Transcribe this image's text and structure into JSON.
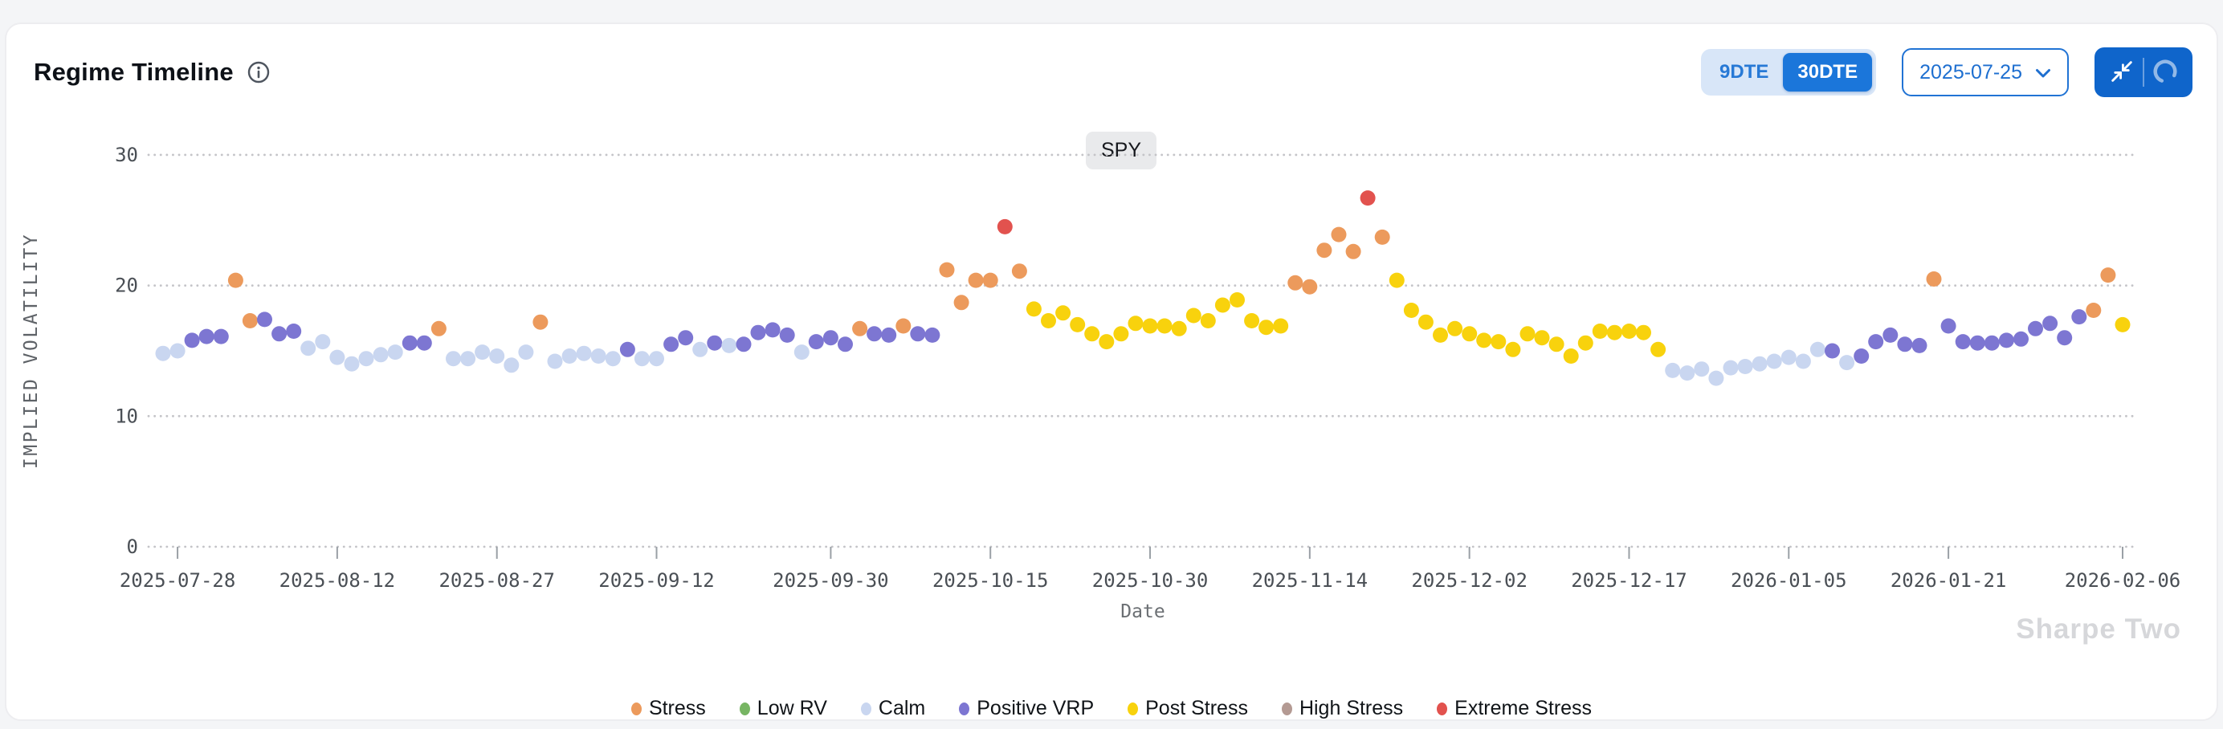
{
  "header": {
    "title": "Regime Timeline",
    "dte_toggle": {
      "options": [
        "9DTE",
        "30DTE"
      ],
      "selected": "30DTE"
    },
    "date_select": {
      "value": "2025-07-25"
    },
    "actions": [
      "collapse",
      "refresh"
    ]
  },
  "symbol_badge": "SPY",
  "watermark": "Sharpe Two",
  "colors": {
    "accent_blue": "#1b76da",
    "toggle_bg": "#d8e6f8",
    "action_bg": "#0f65cb",
    "select_border": "#2173d4",
    "gridline": "#c4c4c8",
    "axis_text": "#4a4f55",
    "badge_bg": "#e9eaec"
  },
  "chart_data": {
    "type": "scatter",
    "title": "SPY",
    "xlabel": "Date",
    "ylabel": "IMPLIED VOLATILITY",
    "ylim": [
      0,
      30
    ],
    "yticks": [
      0,
      10,
      20,
      30
    ],
    "xticks": [
      "2025-07-28",
      "2025-08-12",
      "2025-08-27",
      "2025-09-12",
      "2025-09-30",
      "2025-10-15",
      "2025-10-30",
      "2025-11-14",
      "2025-12-02",
      "2025-12-17",
      "2026-01-05",
      "2026-01-21",
      "2026-02-06"
    ],
    "grid": "horizontal-dotted",
    "legend_position": "bottom-center",
    "regimes": [
      {
        "code": "S",
        "label": "Stress",
        "color": "#EC9A5C"
      },
      {
        "code": "L",
        "label": "Low RV",
        "color": "#77B563"
      },
      {
        "code": "C",
        "label": "Calm",
        "color": "#C9D6F0"
      },
      {
        "code": "P",
        "label": "Positive VRP",
        "color": "#7D76D2"
      },
      {
        "code": "PS",
        "label": "Post Stress",
        "color": "#F8D20D"
      },
      {
        "code": "HS",
        "label": "High Stress",
        "color": "#B49A93"
      },
      {
        "code": "ES",
        "label": "Extreme Stress",
        "color": "#E2524E"
      }
    ],
    "point_format": [
      "date",
      "implied_volatility",
      "regime_code"
    ],
    "points": [
      [
        "2025-07-25",
        14.8,
        "C"
      ],
      [
        "2025-07-28",
        15.0,
        "C"
      ],
      [
        "2025-07-29",
        15.8,
        "P"
      ],
      [
        "2025-07-30",
        16.1,
        "P"
      ],
      [
        "2025-07-31",
        16.1,
        "P"
      ],
      [
        "2025-08-01",
        20.4,
        "S"
      ],
      [
        "2025-08-04",
        17.3,
        "S"
      ],
      [
        "2025-08-05",
        17.4,
        "P"
      ],
      [
        "2025-08-06",
        16.3,
        "P"
      ],
      [
        "2025-08-07",
        16.5,
        "P"
      ],
      [
        "2025-08-08",
        15.2,
        "C"
      ],
      [
        "2025-08-11",
        15.7,
        "C"
      ],
      [
        "2025-08-12",
        14.5,
        "C"
      ],
      [
        "2025-08-13",
        14.0,
        "C"
      ],
      [
        "2025-08-14",
        14.4,
        "C"
      ],
      [
        "2025-08-15",
        14.7,
        "C"
      ],
      [
        "2025-08-18",
        14.9,
        "C"
      ],
      [
        "2025-08-19",
        15.6,
        "P"
      ],
      [
        "2025-08-20",
        15.6,
        "P"
      ],
      [
        "2025-08-21",
        16.7,
        "S"
      ],
      [
        "2025-08-22",
        14.4,
        "C"
      ],
      [
        "2025-08-25",
        14.4,
        "C"
      ],
      [
        "2025-08-26",
        14.9,
        "C"
      ],
      [
        "2025-08-27",
        14.6,
        "C"
      ],
      [
        "2025-08-28",
        13.9,
        "C"
      ],
      [
        "2025-08-29",
        14.9,
        "C"
      ],
      [
        "2025-09-02",
        17.2,
        "S"
      ],
      [
        "2025-09-03",
        14.2,
        "C"
      ],
      [
        "2025-09-04",
        14.6,
        "C"
      ],
      [
        "2025-09-05",
        14.8,
        "C"
      ],
      [
        "2025-09-08",
        14.6,
        "C"
      ],
      [
        "2025-09-09",
        14.4,
        "C"
      ],
      [
        "2025-09-10",
        15.1,
        "P"
      ],
      [
        "2025-09-11",
        14.4,
        "C"
      ],
      [
        "2025-09-12",
        14.4,
        "C"
      ],
      [
        "2025-09-15",
        15.5,
        "P"
      ],
      [
        "2025-09-16",
        16.0,
        "P"
      ],
      [
        "2025-09-17",
        15.1,
        "C"
      ],
      [
        "2025-09-18",
        15.6,
        "P"
      ],
      [
        "2025-09-19",
        15.4,
        "C"
      ],
      [
        "2025-09-22",
        15.5,
        "P"
      ],
      [
        "2025-09-23",
        16.4,
        "P"
      ],
      [
        "2025-09-24",
        16.6,
        "P"
      ],
      [
        "2025-09-25",
        16.2,
        "P"
      ],
      [
        "2025-09-26",
        14.9,
        "C"
      ],
      [
        "2025-09-29",
        15.7,
        "P"
      ],
      [
        "2025-09-30",
        16.0,
        "P"
      ],
      [
        "2025-10-01",
        15.5,
        "P"
      ],
      [
        "2025-10-02",
        16.7,
        "S"
      ],
      [
        "2025-10-03",
        16.3,
        "P"
      ],
      [
        "2025-10-06",
        16.2,
        "P"
      ],
      [
        "2025-10-07",
        16.9,
        "S"
      ],
      [
        "2025-10-08",
        16.3,
        "P"
      ],
      [
        "2025-10-09",
        16.2,
        "P"
      ],
      [
        "2025-10-10",
        21.2,
        "S"
      ],
      [
        "2025-10-13",
        18.7,
        "S"
      ],
      [
        "2025-10-14",
        20.4,
        "S"
      ],
      [
        "2025-10-15",
        20.4,
        "S"
      ],
      [
        "2025-10-16",
        24.5,
        "ES"
      ],
      [
        "2025-10-17",
        21.1,
        "S"
      ],
      [
        "2025-10-20",
        18.2,
        "PS"
      ],
      [
        "2025-10-21",
        17.3,
        "PS"
      ],
      [
        "2025-10-22",
        17.9,
        "PS"
      ],
      [
        "2025-10-23",
        17.0,
        "PS"
      ],
      [
        "2025-10-24",
        16.3,
        "PS"
      ],
      [
        "2025-10-27",
        15.7,
        "PS"
      ],
      [
        "2025-10-28",
        16.3,
        "PS"
      ],
      [
        "2025-10-29",
        17.1,
        "PS"
      ],
      [
        "2025-10-30",
        16.9,
        "PS"
      ],
      [
        "2025-10-31",
        16.9,
        "PS"
      ],
      [
        "2025-11-03",
        16.7,
        "PS"
      ],
      [
        "2025-11-04",
        17.7,
        "PS"
      ],
      [
        "2025-11-05",
        17.3,
        "PS"
      ],
      [
        "2025-11-06",
        18.5,
        "PS"
      ],
      [
        "2025-11-07",
        18.9,
        "PS"
      ],
      [
        "2025-11-10",
        17.3,
        "PS"
      ],
      [
        "2025-11-11",
        16.8,
        "PS"
      ],
      [
        "2025-11-12",
        16.9,
        "PS"
      ],
      [
        "2025-11-13",
        20.2,
        "S"
      ],
      [
        "2025-11-14",
        19.9,
        "S"
      ],
      [
        "2025-11-17",
        22.7,
        "S"
      ],
      [
        "2025-11-18",
        23.9,
        "S"
      ],
      [
        "2025-11-19",
        22.6,
        "S"
      ],
      [
        "2025-11-20",
        26.7,
        "ES"
      ],
      [
        "2025-11-21",
        23.7,
        "S"
      ],
      [
        "2025-11-24",
        20.4,
        "PS"
      ],
      [
        "2025-11-25",
        18.1,
        "PS"
      ],
      [
        "2025-11-26",
        17.2,
        "PS"
      ],
      [
        "2025-11-28",
        16.2,
        "PS"
      ],
      [
        "2025-12-01",
        16.7,
        "PS"
      ],
      [
        "2025-12-02",
        16.3,
        "PS"
      ],
      [
        "2025-12-03",
        15.8,
        "PS"
      ],
      [
        "2025-12-04",
        15.7,
        "PS"
      ],
      [
        "2025-12-05",
        15.1,
        "PS"
      ],
      [
        "2025-12-08",
        16.3,
        "PS"
      ],
      [
        "2025-12-09",
        16.0,
        "PS"
      ],
      [
        "2025-12-10",
        15.5,
        "PS"
      ],
      [
        "2025-12-11",
        14.6,
        "PS"
      ],
      [
        "2025-12-12",
        15.6,
        "PS"
      ],
      [
        "2025-12-15",
        16.5,
        "PS"
      ],
      [
        "2025-12-16",
        16.4,
        "PS"
      ],
      [
        "2025-12-17",
        16.5,
        "PS"
      ],
      [
        "2025-12-18",
        16.4,
        "PS"
      ],
      [
        "2025-12-19",
        15.1,
        "PS"
      ],
      [
        "2025-12-22",
        13.5,
        "C"
      ],
      [
        "2025-12-23",
        13.3,
        "C"
      ],
      [
        "2025-12-24",
        13.6,
        "C"
      ],
      [
        "2025-12-26",
        12.9,
        "C"
      ],
      [
        "2025-12-29",
        13.7,
        "C"
      ],
      [
        "2025-12-30",
        13.8,
        "C"
      ],
      [
        "2025-12-31",
        14.0,
        "C"
      ],
      [
        "2026-01-02",
        14.2,
        "C"
      ],
      [
        "2026-01-05",
        14.5,
        "C"
      ],
      [
        "2026-01-06",
        14.2,
        "C"
      ],
      [
        "2026-01-07",
        15.1,
        "C"
      ],
      [
        "2026-01-08",
        15.0,
        "P"
      ],
      [
        "2026-01-09",
        14.1,
        "C"
      ],
      [
        "2026-01-12",
        14.6,
        "P"
      ],
      [
        "2026-01-13",
        15.7,
        "P"
      ],
      [
        "2026-01-14",
        16.2,
        "P"
      ],
      [
        "2026-01-15",
        15.5,
        "P"
      ],
      [
        "2026-01-16",
        15.4,
        "P"
      ],
      [
        "2026-01-20",
        20.5,
        "S"
      ],
      [
        "2026-01-21",
        16.9,
        "P"
      ],
      [
        "2026-01-22",
        15.7,
        "P"
      ],
      [
        "2026-01-23",
        15.6,
        "P"
      ],
      [
        "2026-01-26",
        15.6,
        "P"
      ],
      [
        "2026-01-27",
        15.8,
        "P"
      ],
      [
        "2026-01-28",
        15.9,
        "P"
      ],
      [
        "2026-01-29",
        16.7,
        "P"
      ],
      [
        "2026-01-30",
        17.1,
        "P"
      ],
      [
        "2026-02-02",
        16.0,
        "P"
      ],
      [
        "2026-02-03",
        17.6,
        "P"
      ],
      [
        "2026-02-04",
        18.1,
        "S"
      ],
      [
        "2026-02-05",
        20.8,
        "S"
      ],
      [
        "2026-02-06",
        17.0,
        "PS"
      ]
    ]
  }
}
